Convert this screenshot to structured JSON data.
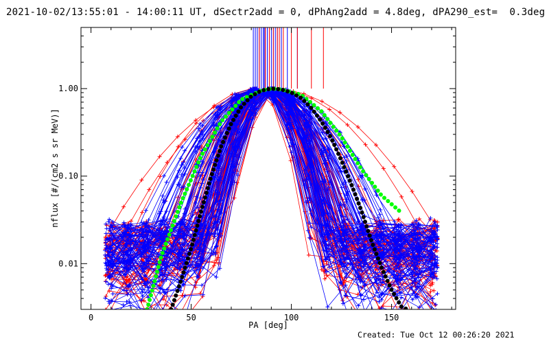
{
  "header": {
    "title": "2021-10-02/13:55:01 - 14:00:11 UT, dSectr2add = 0, dPhAng2add = 4.8deg, dPA290_est=  0.3deg"
  },
  "footer": {
    "created": "Created: Tue Oct 12 00:26:20 2021"
  },
  "chart_data": {
    "type": "line",
    "title": "2021-10-02/13:55:01 - 14:00:11 UT, dSectr2add = 0, dPhAng2add = 4.8deg, dPA290_est=  0.3deg",
    "xlabel": "PA [deg]",
    "ylabel": "nflux [#/(cm2 s sr MeV)]",
    "xlim": [
      -5,
      182
    ],
    "ylim": [
      0.003,
      5.0
    ],
    "yscale": "log",
    "x_ticks": [
      0,
      50,
      100,
      150
    ],
    "x_tick_labels": [
      "0",
      "50",
      "100",
      "150"
    ],
    "y_ticks": [
      0.01,
      0.1,
      1.0
    ],
    "y_tick_labels": [
      "0.01",
      "0.10",
      "1.00"
    ],
    "grid": false,
    "legend": "none",
    "colors": {
      "red": "#ff0000",
      "blue": "#0000ff",
      "green": "#00ff00",
      "black": "#000000"
    },
    "series": [
      {
        "color": "green",
        "style": "thick-dotted",
        "x": [
          28,
          35,
          45,
          55,
          65,
          75,
          85,
          90,
          95,
          105,
          115,
          125,
          135,
          145,
          155
        ],
        "y": [
          0.003,
          0.012,
          0.05,
          0.17,
          0.42,
          0.75,
          0.95,
          1.0,
          0.98,
          0.85,
          0.55,
          0.28,
          0.12,
          0.06,
          0.038
        ]
      },
      {
        "color": "black",
        "style": "thick-dotted",
        "x": [
          40,
          45,
          50,
          55,
          60,
          65,
          70,
          75,
          80,
          85,
          90,
          95,
          100,
          105,
          110,
          115,
          120,
          125,
          130,
          135,
          140,
          145,
          150,
          155,
          158
        ],
        "y": [
          0.003,
          0.0065,
          0.015,
          0.04,
          0.1,
          0.22,
          0.4,
          0.62,
          0.82,
          0.95,
          1.0,
          0.98,
          0.9,
          0.78,
          0.6,
          0.42,
          0.27,
          0.15,
          0.08,
          0.04,
          0.018,
          0.009,
          0.005,
          0.0032,
          0.003
        ]
      }
    ],
    "pa_marker_lines": {
      "description_note": "",
      "blue_x": [
        81,
        82,
        83,
        84,
        85,
        86,
        86.5,
        87,
        88,
        89,
        90,
        91,
        92,
        93,
        95,
        98,
        103
      ],
      "red_x": [
        84,
        87,
        89,
        91,
        93,
        94,
        96,
        100,
        103,
        110,
        116
      ]
    }
  }
}
